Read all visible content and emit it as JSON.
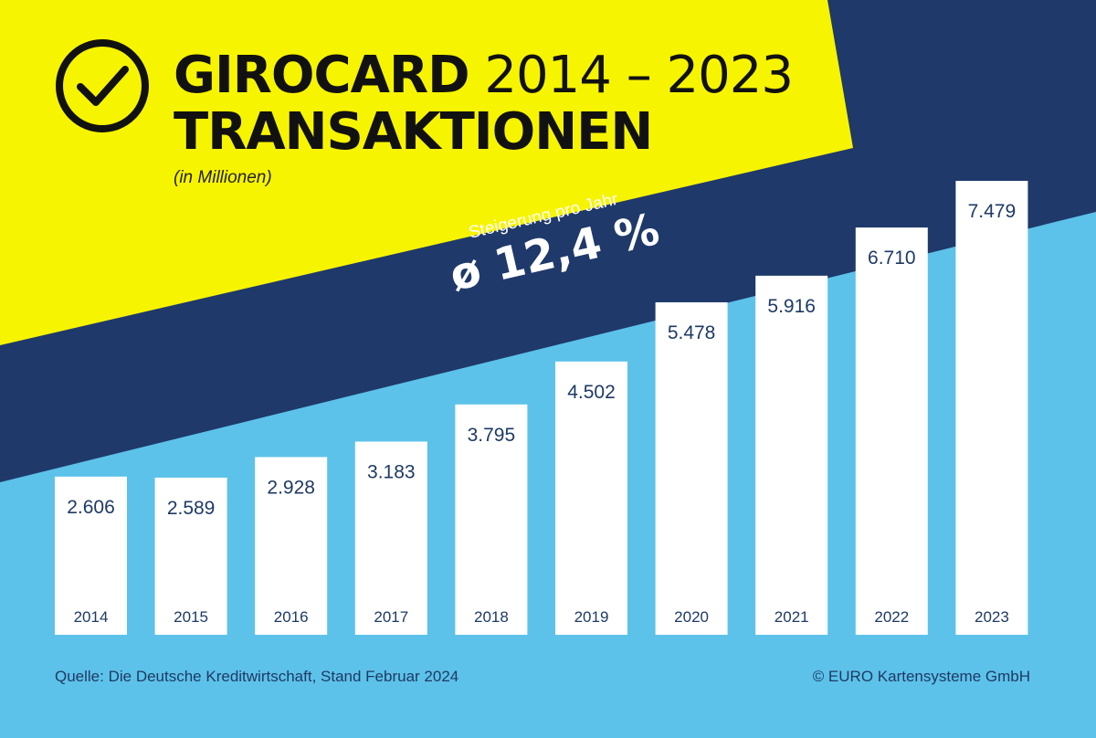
{
  "colors": {
    "yellow": "#f7f400",
    "navy": "#1f396a",
    "sky": "#5dc2ea",
    "bar": "#ffffff",
    "text_dark": "#1e3a64"
  },
  "header": {
    "title_bold": "GIROCARD",
    "title_range": "2014 – 2023",
    "title_line2": "TRANSAKTIONEN",
    "unit": "(in Millionen)",
    "icon": "checkmark-circle-icon"
  },
  "growth": {
    "label": "Steigerung pro Jahr",
    "value": "ø 12,4 %"
  },
  "footer": {
    "source": "Quelle: Die Deutsche Kreditwirtschaft, Stand Februar 2024",
    "copyright": "© EURO Kartensysteme GmbH"
  },
  "chart_data": {
    "type": "bar",
    "title": "GIROCARD 2014 – 2023 TRANSAKTIONEN",
    "ylabel": "(in Millionen)",
    "categories": [
      "2014",
      "2015",
      "2016",
      "2017",
      "2018",
      "2019",
      "2020",
      "2021",
      "2022",
      "2023"
    ],
    "values": [
      2606,
      2589,
      2928,
      3183,
      3795,
      4502,
      5478,
      5916,
      6710,
      7479
    ],
    "value_labels": [
      "2.606",
      "2.589",
      "2.928",
      "3.183",
      "3.795",
      "4.502",
      "5.478",
      "5.916",
      "6.710",
      "7.479"
    ],
    "ylim": [
      0,
      7479
    ],
    "grid": false
  }
}
